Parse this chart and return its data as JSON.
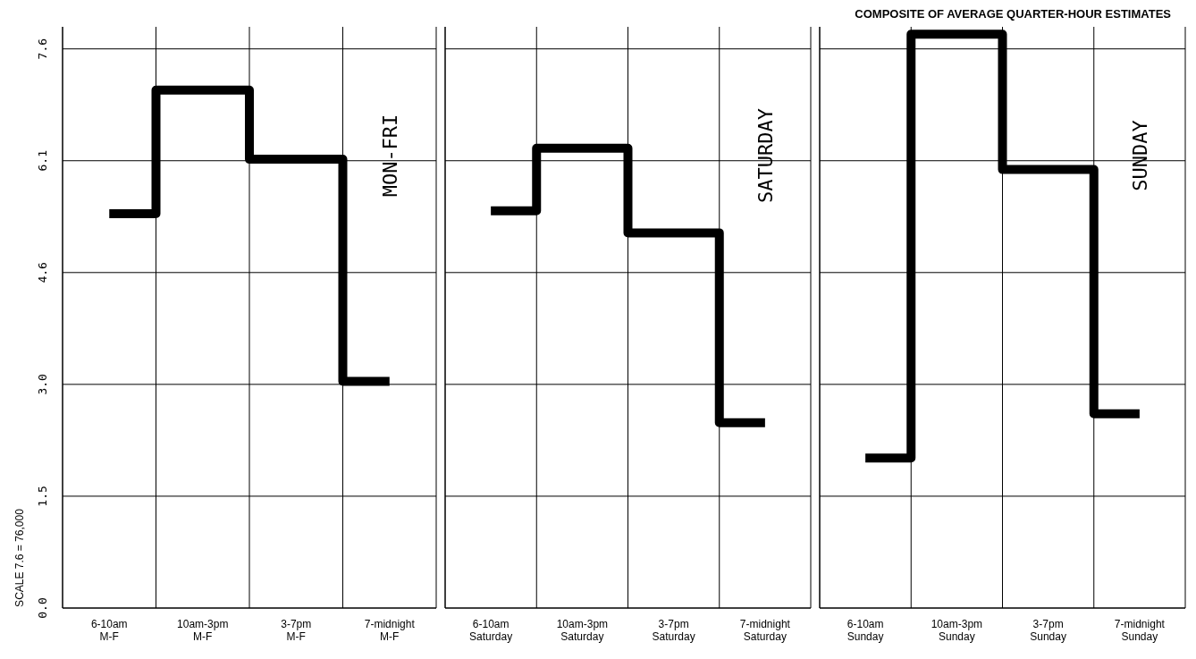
{
  "chart_data": [
    {
      "type": "step",
      "title": "MON-FRI",
      "ylabel": "SCALE 7.6 = 76,000",
      "annotations": [
        "COMPOSITE OF AVERAGE QUARTER-HOUR ESTIMATES"
      ],
      "categories": [
        "6-10am M-F",
        "10am-3pm M-F",
        "3-7pm M-F",
        "7-midnight M-F"
      ],
      "values": [
        5.36,
        7.04,
        6.1,
        3.08
      ],
      "color": "#000000",
      "ylim": [
        0,
        7.9
      ],
      "yticks": [
        {
          "value": 0,
          "label": "0.0"
        },
        {
          "value": 1.52,
          "label": "1.5"
        },
        {
          "value": 3.04,
          "label": "3.0"
        },
        {
          "value": 4.56,
          "label": "4.6"
        },
        {
          "value": 6.08,
          "label": "6.1"
        },
        {
          "value": 7.6,
          "label": "7.6"
        }
      ],
      "grid": true
    },
    {
      "type": "step",
      "title": "SATURDAY",
      "categories": [
        "6-10am Saturday",
        "10am-3pm Saturday",
        "3-7pm Saturday",
        "7-midnight Saturday"
      ],
      "values": [
        5.4,
        6.25,
        5.1,
        2.52
      ],
      "color": "#000000",
      "ylim": [
        0,
        7.9
      ],
      "yticks": [
        {
          "value": 0,
          "label": null
        },
        {
          "value": 1.52,
          "label": null
        },
        {
          "value": 3.04,
          "label": null
        },
        {
          "value": 4.56,
          "label": null
        },
        {
          "value": 6.08,
          "label": null
        },
        {
          "value": 7.6,
          "label": null
        }
      ],
      "grid": true,
      "tick_labels": "x"
    },
    {
      "type": "step",
      "title": "SUNDAY",
      "categories": [
        "6-10am Sunday",
        "10am-3pm Sunday",
        "3-7pm Sunday",
        "7-midnight Sunday"
      ],
      "values": [
        2.04,
        7.8,
        5.96,
        2.64
      ],
      "color": "#000000",
      "ylim": [
        0,
        7.9
      ],
      "yticks": [
        {
          "value": 0,
          "label": null
        },
        {
          "value": 1.52,
          "label": null
        },
        {
          "value": 3.04,
          "label": null
        },
        {
          "value": 4.56,
          "label": null
        },
        {
          "value": 6.08,
          "label": null
        },
        {
          "value": 7.6,
          "label": null
        }
      ],
      "grid": true,
      "tick_labels": "x"
    }
  ]
}
